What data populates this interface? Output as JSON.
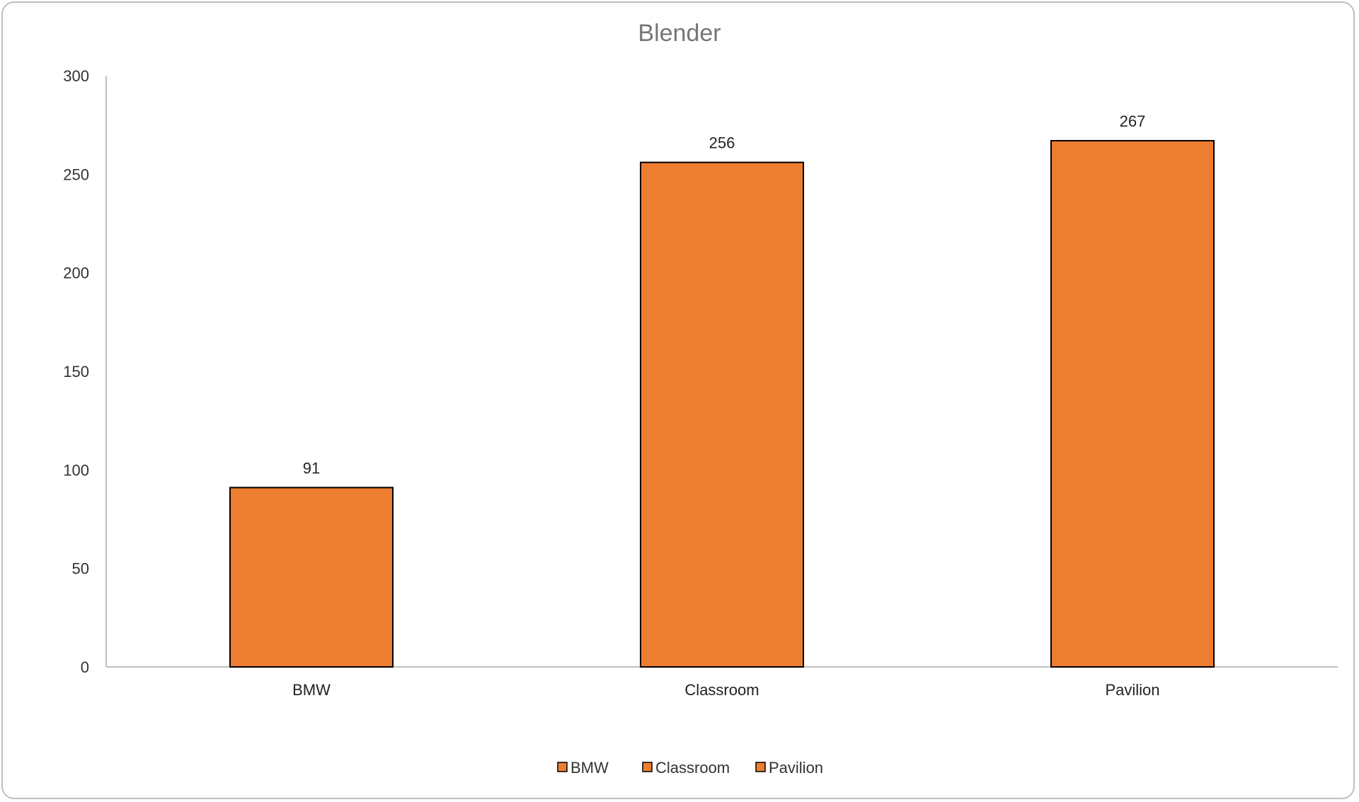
{
  "chart_data": {
    "type": "bar",
    "title": "Blender",
    "xlabel": "",
    "ylabel": "",
    "categories": [
      "BMW",
      "Classroom",
      "Pavilion"
    ],
    "values": [
      91,
      256,
      267
    ],
    "data_labels": [
      "91",
      "256",
      "267"
    ],
    "ylim": [
      0,
      300
    ],
    "yticks": [
      0,
      50,
      100,
      150,
      200,
      250,
      300
    ],
    "ytick_labels": [
      "0",
      "50",
      "100",
      "150",
      "200",
      "250",
      "300"
    ],
    "grid": false,
    "legend": {
      "position": "bottom",
      "entries": [
        "BMW",
        "Classroom",
        "Pavilion"
      ]
    },
    "colors": {
      "bar_fill": "#ED7D31",
      "bar_stroke": "#000000",
      "axis": "#bfbfbf",
      "title": "#767676"
    }
  }
}
